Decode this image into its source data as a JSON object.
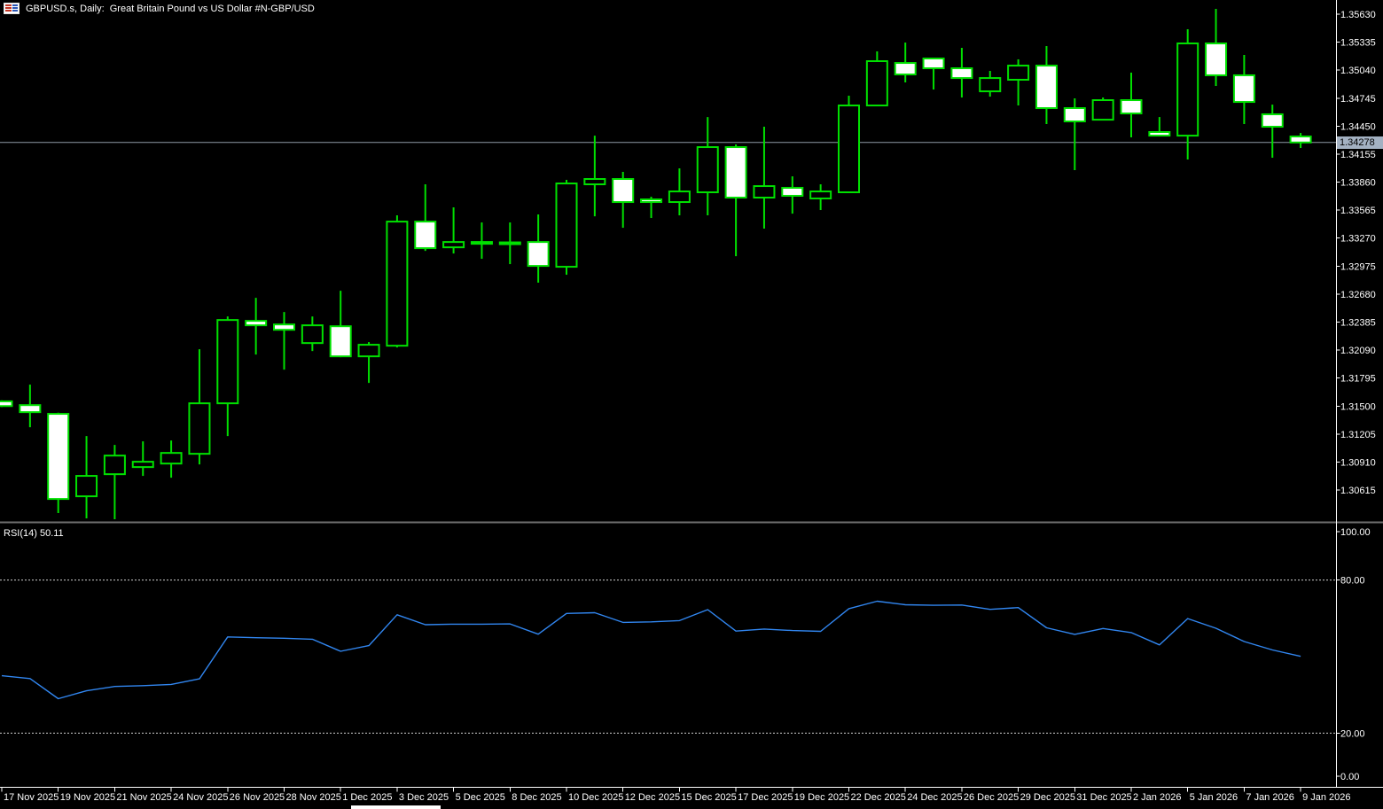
{
  "window": {
    "title": "GBPUSD.s, Daily:  Great Britain Pound vs US Dollar #N-GBP/USD"
  },
  "current_price": "1.34278",
  "colors": {
    "background": "#000000",
    "candle_border": "#00e000",
    "bear_candle_fill": "#ffffff",
    "bull_candle_fill": "#000000",
    "price_line": "#8e9aa6",
    "price_badge_bg": "#a3b1c2",
    "price_badge_text": "#000000",
    "rsi_line": "#3186f0",
    "level_line": "#cfcfcf",
    "axis_line": "#ffffff",
    "axis_text": "#ffffff",
    "separator": "#6e6e6e",
    "scrollbar": "#ffffff"
  },
  "price_axis": {
    "step": 0.00295,
    "labels": [
      "1.35630",
      "1.35335",
      "1.35040",
      "1.34745",
      "1.34450",
      "1.34155",
      "1.33860",
      "1.33565",
      "1.33270",
      "1.32975",
      "1.32680",
      "1.32385",
      "1.32090",
      "1.31795",
      "1.31500",
      "1.31205",
      "1.30910",
      "1.30615"
    ]
  },
  "time_axis": {
    "tick_every_candles": 2,
    "labels": [
      "17 Nov 2025",
      "19 Nov 2025",
      "21 Nov 2025",
      "24 Nov 2025",
      "26 Nov 2025",
      "28 Nov 2025",
      "1 Dec 2025",
      "3 Dec 2025",
      "5 Dec 2025",
      "8 Dec 2025",
      "10 Dec 2025",
      "12 Dec 2025",
      "15 Dec 2025",
      "17 Dec 2025",
      "19 Dec 2025",
      "22 Dec 2025",
      "24 Dec 2025",
      "26 Dec 2025",
      "29 Dec 2025",
      "31 Dec 2025",
      "2 Jan 2026",
      "5 Jan 2026",
      "7 Jan 2026",
      "9 Jan 2026"
    ]
  },
  "rsi": {
    "label": "RSI(14)",
    "value": "50.11",
    "axis_labels": [
      "100.00",
      "80.00",
      "20.00",
      "0.00"
    ],
    "overbought_level": 80,
    "oversold_level": 20
  },
  "chart_data": [
    {
      "type": "candlestick",
      "title": "GBPUSD.s Daily",
      "ylim": [
        1.30316,
        1.35686
      ],
      "y_tick_step": 0.00295,
      "current_price": 1.34278,
      "ohlc": [
        [
          1.3155,
          1.3156,
          1.3149,
          1.315
        ],
        [
          1.3151,
          1.31726,
          1.31277,
          1.31436
        ],
        [
          1.31418,
          1.3143,
          1.30372,
          1.30521
        ],
        [
          1.30549,
          1.31184,
          1.30316,
          1.30764
        ],
        [
          1.30782,
          1.3109,
          1.30307,
          1.30978
        ],
        [
          1.30857,
          1.31128,
          1.30764,
          1.30913
        ],
        [
          1.30894,
          1.31137,
          1.30745,
          1.31006
        ],
        [
          1.30997,
          1.32099,
          1.30885,
          1.31529
        ],
        [
          1.31529,
          1.32444,
          1.31184,
          1.32407
        ],
        [
          1.32398,
          1.32641,
          1.32043,
          1.32351
        ],
        [
          1.3236,
          1.32491,
          1.31884,
          1.32304
        ],
        [
          1.32164,
          1.32444,
          1.3208,
          1.32351
        ],
        [
          1.32341,
          1.32715,
          1.32015,
          1.32024
        ],
        [
          1.32024,
          1.32174,
          1.31744,
          1.32146
        ],
        [
          1.32136,
          1.3351,
          1.32118,
          1.33444
        ],
        [
          1.33444,
          1.33837,
          1.33136,
          1.33164
        ],
        [
          1.33173,
          1.33594,
          1.33108,
          1.33229
        ],
        [
          1.3322,
          1.33435,
          1.33052,
          1.33229
        ],
        [
          1.33225,
          1.33435,
          1.32996,
          1.33211
        ],
        [
          1.33229,
          1.33519,
          1.328,
          1.32977
        ],
        [
          1.32968,
          1.33884,
          1.32884,
          1.33846
        ],
        [
          1.33837,
          1.3435,
          1.335,
          1.33893
        ],
        [
          1.33893,
          1.33968,
          1.33379,
          1.3365
        ],
        [
          1.33678,
          1.33706,
          1.33482,
          1.3365
        ],
        [
          1.3365,
          1.34005,
          1.3351,
          1.33762
        ],
        [
          1.33753,
          1.34546,
          1.3351,
          1.34229
        ],
        [
          1.34229,
          1.34257,
          1.3308,
          1.33697
        ],
        [
          1.33697,
          1.34444,
          1.3337,
          1.33818
        ],
        [
          1.338,
          1.33921,
          1.33528,
          1.33716
        ],
        [
          1.33688,
          1.33837,
          1.33566,
          1.33762
        ],
        [
          1.33753,
          1.34771,
          1.33744,
          1.34668
        ],
        [
          1.34668,
          1.35238,
          1.34668,
          1.35135
        ],
        [
          1.35116,
          1.35331,
          1.34911,
          1.34995
        ],
        [
          1.35163,
          1.35163,
          1.34836,
          1.3506
        ],
        [
          1.3506,
          1.35275,
          1.34752,
          1.34957
        ],
        [
          1.34817,
          1.35032,
          1.34761,
          1.34957
        ],
        [
          1.34939,
          1.35154,
          1.34668,
          1.35088
        ],
        [
          1.35088,
          1.35294,
          1.34472,
          1.3464
        ],
        [
          1.3464,
          1.34743,
          1.33986,
          1.345
        ],
        [
          1.34518,
          1.34752,
          1.34518,
          1.34724
        ],
        [
          1.34724,
          1.35014,
          1.34332,
          1.34584
        ],
        [
          1.34388,
          1.34546,
          1.3435,
          1.3435
        ],
        [
          1.3435,
          1.35471,
          1.34098,
          1.35322
        ],
        [
          1.35322,
          1.35686,
          1.34874,
          1.34986
        ],
        [
          1.34986,
          1.352,
          1.34472,
          1.34705
        ],
        [
          1.34575,
          1.34677,
          1.34117,
          1.34444
        ],
        [
          1.34341,
          1.34378,
          1.3422,
          1.34278
        ]
      ]
    },
    {
      "type": "line",
      "name": "RSI",
      "period": 14,
      "ylim": [
        0,
        100
      ],
      "levels": [
        20,
        80
      ],
      "last_value": 50.11,
      "values": [
        42.5,
        41.4,
        33.5,
        36.6,
        38.3,
        38.6,
        39.1,
        41.3,
        57.7,
        57.4,
        57.2,
        56.8,
        52.1,
        54.3,
        66.4,
        62.5,
        62.7,
        62.7,
        62.8,
        58.8,
        66.9,
        67.2,
        63.4,
        63.6,
        64.1,
        68.4,
        60.0,
        60.8,
        60.2,
        59.9,
        68.8,
        71.7,
        70.3,
        70.1,
        70.2,
        68.5,
        69.2,
        61.3,
        58.7,
        61.0,
        59.4,
        54.6,
        64.9,
        61.1,
        55.9,
        52.6,
        50.11
      ]
    }
  ]
}
